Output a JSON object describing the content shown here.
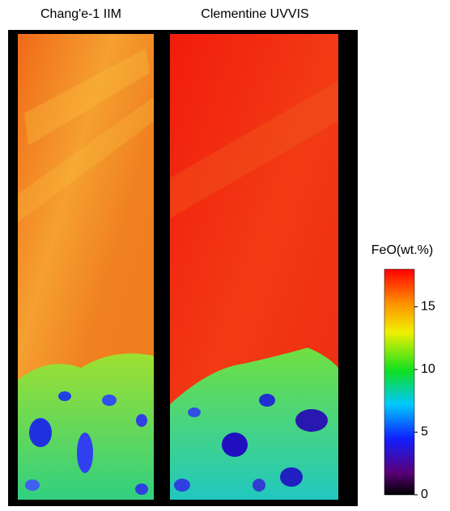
{
  "panels": [
    {
      "title": "Chang'e-1 IIM"
    },
    {
      "title": "Clementine UVVIS"
    }
  ],
  "colorbar": {
    "label": "FeO(wt.%)",
    "lim": [
      0,
      18
    ],
    "ticks": [
      0,
      5,
      10,
      15
    ]
  }
}
